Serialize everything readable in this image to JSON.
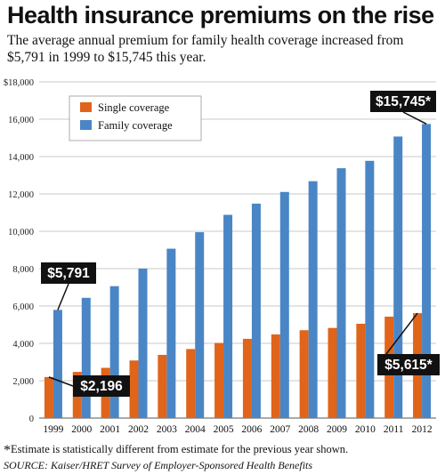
{
  "header": {
    "title": "Health insurance premiums on the rise",
    "subtitle": "The average annual premium for family health coverage increased from $5,791 in 1999 to $15,745 this year."
  },
  "chart_data": {
    "type": "bar",
    "categories": [
      "1999",
      "2000",
      "2001",
      "2002",
      "2003",
      "2004",
      "2005",
      "2006",
      "2007",
      "2008",
      "2009",
      "2010",
      "2011",
      "2012"
    ],
    "series": [
      {
        "name": "Single coverage",
        "color": "#e0641a",
        "values": [
          2196,
          2471,
          2689,
          3083,
          3383,
          3695,
          4024,
          4242,
          4479,
          4704,
          4824,
          5049,
          5429,
          5615
        ]
      },
      {
        "name": "Family coverage",
        "color": "#4a86c5",
        "values": [
          5791,
          6438,
          7061,
          8003,
          9068,
          9950,
          10880,
          11480,
          12106,
          12680,
          13375,
          13770,
          15073,
          15745
        ]
      }
    ],
    "ylim": [
      0,
      18000
    ],
    "yticks": [
      "0",
      "2,000",
      "4,000",
      "6,000",
      "8,000",
      "10,000",
      "12,000",
      "14,000",
      "16,000",
      "$18,000"
    ],
    "ytick_values": [
      0,
      2000,
      4000,
      6000,
      8000,
      10000,
      12000,
      14000,
      16000,
      18000
    ],
    "grid": true,
    "legend": "top-left",
    "callouts": [
      {
        "text": "$5,791",
        "series": 1,
        "index": 0
      },
      {
        "text": "$2,196",
        "series": 0,
        "index": 0
      },
      {
        "text": "$15,745*",
        "series": 1,
        "index": 13
      },
      {
        "text": "$5,615*",
        "series": 0,
        "index": 13
      }
    ]
  },
  "footer": {
    "footnote_star": "*",
    "footnote": "Estimate is statistically different from estimate for the previous year shown.",
    "source": "SOURCE: Kaiser/HRET Survey of Employer-Sponsored Health Benefits"
  }
}
